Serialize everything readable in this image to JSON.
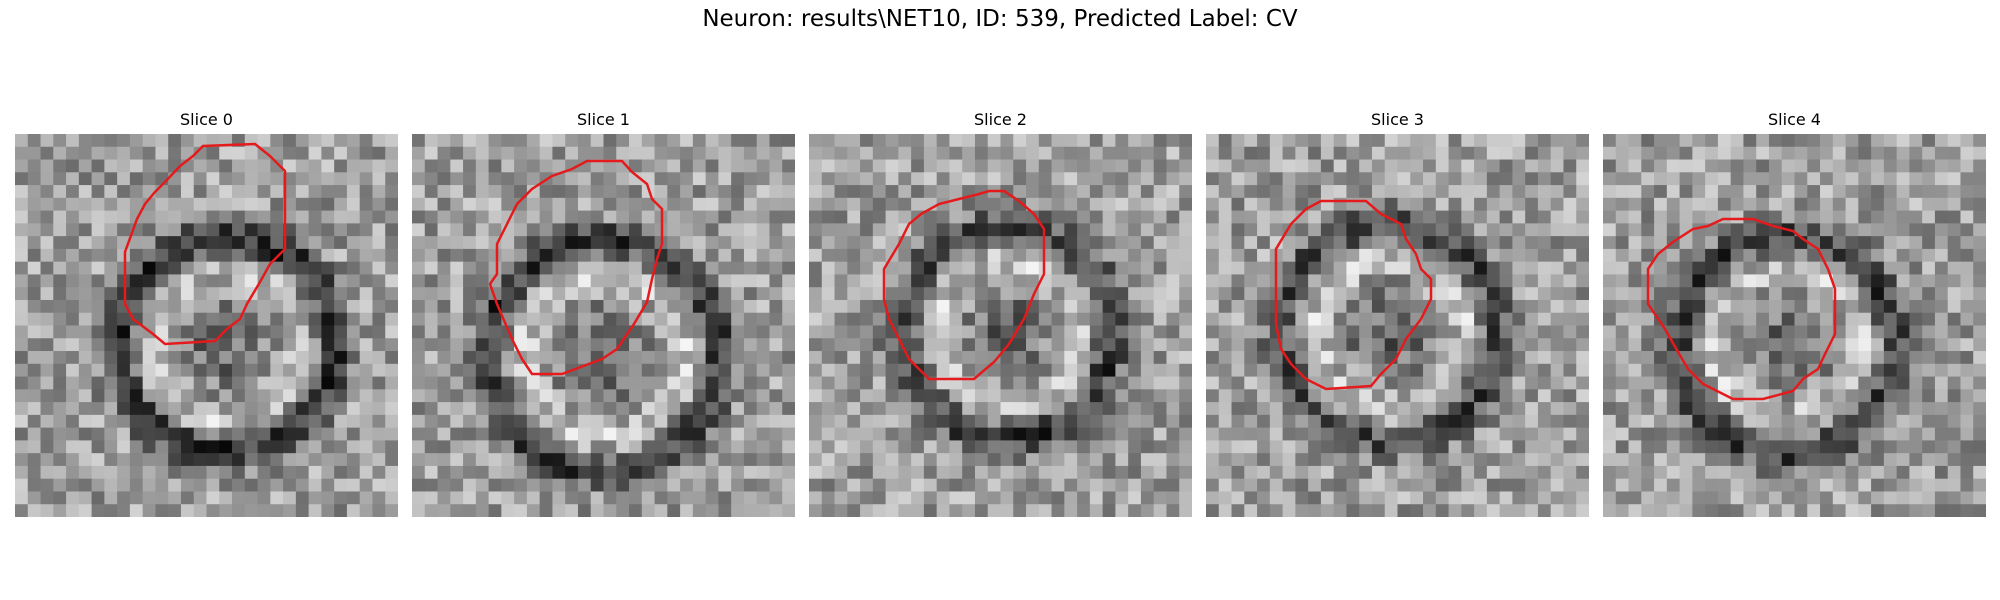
{
  "figure": {
    "title": "Neuron: results\\NET10, ID: 539, Predicted Label: CV",
    "outline_color": "#e41a1c",
    "colormap": "grayscale"
  },
  "slices": [
    {
      "title": "Slice 0"
    },
    {
      "title": "Slice 1"
    },
    {
      "title": "Slice 2"
    },
    {
      "title": "Slice 3"
    },
    {
      "title": "Slice 4"
    }
  ]
}
